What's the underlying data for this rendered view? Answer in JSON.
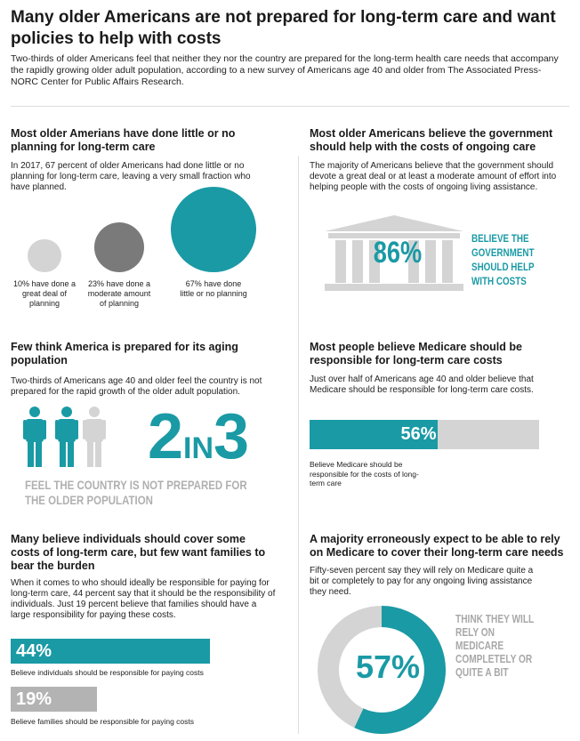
{
  "headline": "Many older Americans are not prepared for long-term care and want policies to help with costs",
  "intro": "Two-thirds of older Americans feel that neither they nor the country are prepared for the long-term health care needs that accompany the rapidly growing older adult population, according to a new survey of Americans age 40 and older from The Associated Press-NORC Center for Public Affairs Research.",
  "colors": {
    "teal": "#1a9aa5",
    "gray_light": "#d4d4d4",
    "gray_dark": "#7a7a7a",
    "gray_mid": "#b3b3b3"
  },
  "sections": {
    "planning": {
      "title": "Most older Amerians have done little or no planning for long-term care",
      "body": "In 2017, 67 percent of older Americans had done little or no planning for long-term care, leaving a very small fraction who have planned."
    },
    "government": {
      "title": "Most older Americans believe the government should help with the costs of ongoing care",
      "body": "The majority of Americans believe that the government should devote a great deal or at least a moderate amount of effort into helping people with the costs of ongoing living assistance.",
      "value_label": "86%",
      "caption": "BELIEVE THE GOVERNMENT SHOULD HELP WITH COSTS",
      "icon": "government-building-icon"
    },
    "prepared": {
      "title": "Few think America is prepared for its aging population",
      "body": "Two-thirds of Americans age 40 and older feel the country is not prepared for the rapid growth of the older adult population.",
      "ratio_num": "2",
      "ratio_in": "IN",
      "ratio_den": "3",
      "caption": "FEEL THE COUNTRY IS NOT PREPARED FOR THE OLDER POPULATION",
      "icon": "person-icon"
    },
    "medicare": {
      "title": "Most people believe Medicare should be responsible for long-term care costs",
      "body": "Just over half of Americans age 40 and older believe that Medicare should be responsible for long-term care costs.",
      "value_label": "56%",
      "caption": "Believe Medicare should be responsible for the costs of long-term care"
    },
    "individuals": {
      "title": "Many believe individuals should cover some costs of long-term care, but few want families to bear the burden",
      "body": "When it comes to who should ideally be responsible for paying for long-term care, 44 percent say that it should be the responsibility of individuals. Just 19 percent believe that families should have a large responsibility for paying these costs.",
      "bar1_label": "44%",
      "bar1_caption": "Believe individuals should be responsible for paying costs",
      "bar2_label": "19%",
      "bar2_caption": "Believe families should be responsible for paying costs"
    },
    "rely": {
      "title": "A majority erroneously expect to be able to rely on Medicare to cover their long-term care needs",
      "body": "Fifty-seven percent say they will rely on Medicare quite a bit or completely to pay for any ongoing living assistance they need.",
      "value_label": "57%",
      "caption": "THINK THEY WILL RELY ON MEDICARE COMPLETELY OR QUITE A BIT"
    }
  },
  "chart_data": [
    {
      "type": "bubble",
      "categories": [
        "10% have done a great deal of planning",
        "23% have done a moderate amount of planning",
        "67% have done little or no planning"
      ],
      "values": [
        10,
        23,
        67
      ]
    },
    {
      "type": "stat",
      "value": 86
    },
    {
      "type": "pictograph",
      "filled": 2,
      "total": 3
    },
    {
      "type": "bar",
      "categories": [
        "Believe Medicare should be responsible for the costs of long-term care"
      ],
      "values": [
        56
      ],
      "ylim": [
        0,
        100
      ]
    },
    {
      "type": "bar",
      "categories": [
        "Believe individuals should be responsible for paying costs",
        "Believe families should be responsible for paying costs"
      ],
      "values": [
        44,
        19
      ],
      "ylim": [
        0,
        100
      ]
    },
    {
      "type": "donut",
      "value": 57,
      "total": 100
    }
  ]
}
